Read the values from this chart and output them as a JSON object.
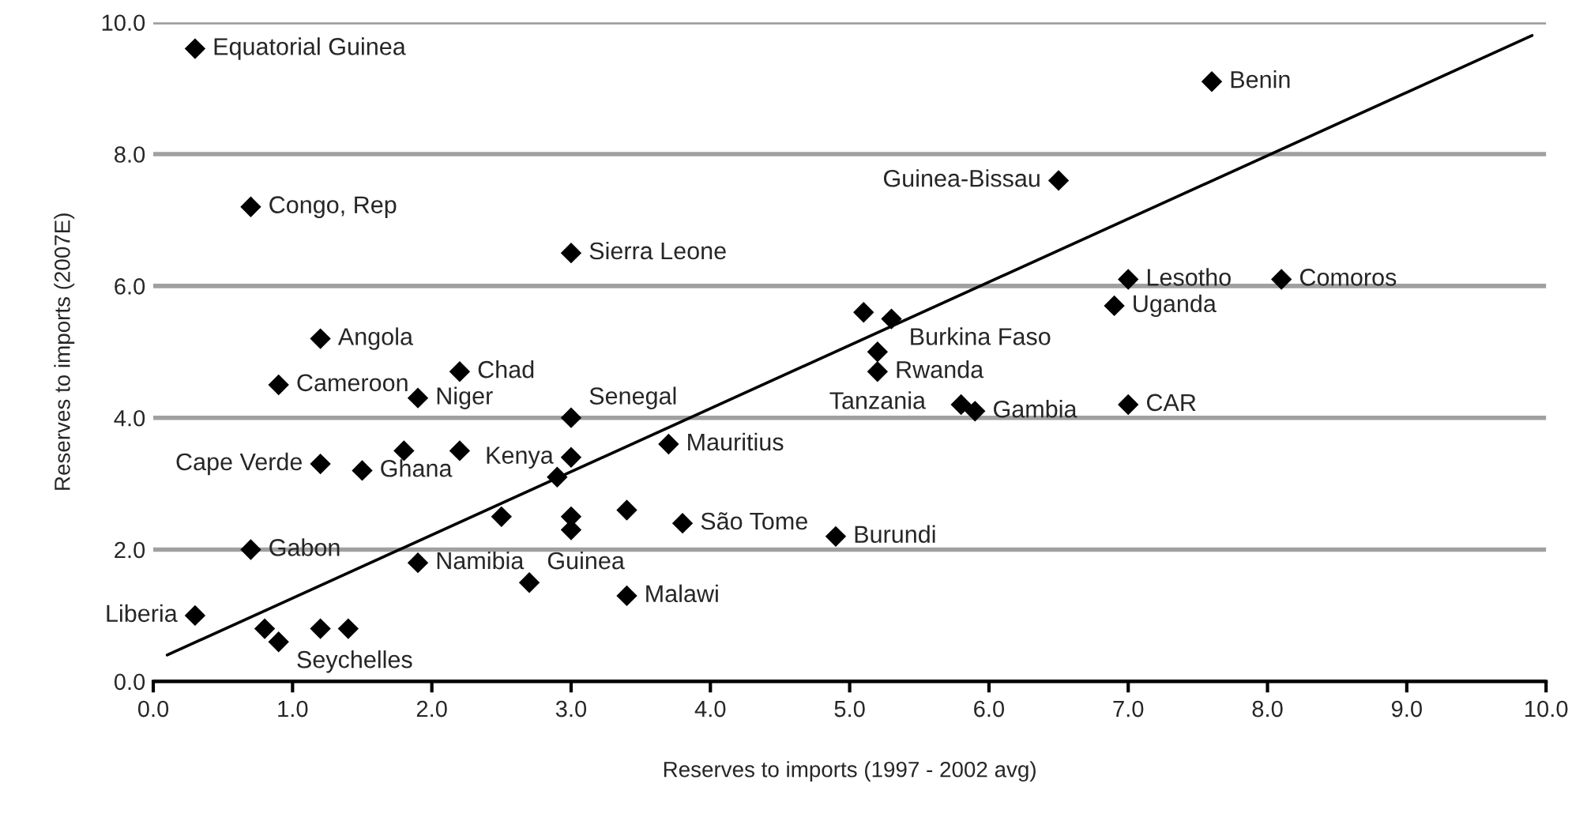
{
  "chart_data": {
    "type": "scatter",
    "xlabel": "Reserves to imports (1997 - 2002 avg)",
    "ylabel": "Reserves to imports (2007E)",
    "xlim": [
      0,
      10
    ],
    "ylim": [
      0,
      10
    ],
    "xticks": [
      {
        "value": 0,
        "label": "0.0"
      },
      {
        "value": 1,
        "label": "1.0"
      },
      {
        "value": 2,
        "label": "2.0"
      },
      {
        "value": 3,
        "label": "3.0"
      },
      {
        "value": 4,
        "label": "4.0"
      },
      {
        "value": 5,
        "label": "5.0"
      },
      {
        "value": 6,
        "label": "6.0"
      },
      {
        "value": 7,
        "label": "7.0"
      },
      {
        "value": 8,
        "label": "8.0"
      },
      {
        "value": 9,
        "label": "9.0"
      },
      {
        "value": 10,
        "label": "10.0"
      }
    ],
    "yticks": [
      {
        "value": 0,
        "label": "0.0"
      },
      {
        "value": 2,
        "label": "2.0"
      },
      {
        "value": 4,
        "label": "4.0"
      },
      {
        "value": 6,
        "label": "6.0"
      },
      {
        "value": 8,
        "label": "8.0"
      },
      {
        "value": 10,
        "label": "10.0"
      }
    ],
    "grid": "y",
    "marker": "diamond",
    "series": [
      {
        "color": "#000000",
        "x": [
          0.3,
          0.7,
          3.0,
          1.2,
          2.2,
          0.9,
          1.9,
          3.0,
          1.8,
          2.2,
          3.0,
          1.2,
          1.5,
          2.9,
          3.7,
          2.5,
          3.0,
          3.0,
          3.4,
          3.8,
          4.9,
          0.7,
          1.9,
          2.7,
          3.4,
          0.3,
          0.8,
          0.9,
          1.2,
          1.4,
          7.6,
          6.5,
          5.1,
          5.3,
          5.2,
          5.2,
          5.8,
          5.9,
          7.0,
          8.1,
          6.9,
          7.0
        ],
        "values": [
          9.6,
          7.2,
          6.5,
          5.2,
          4.7,
          4.5,
          4.3,
          4.0,
          3.5,
          3.5,
          3.4,
          3.3,
          3.2,
          3.1,
          3.6,
          2.5,
          2.5,
          2.3,
          2.6,
          2.4,
          2.2,
          2.0,
          1.8,
          1.5,
          1.3,
          1.0,
          0.8,
          0.6,
          0.8,
          0.8,
          9.1,
          7.6,
          5.6,
          5.5,
          5.0,
          4.7,
          4.2,
          4.1,
          6.1,
          6.1,
          5.7,
          4.2
        ]
      },
      {
        "type": "line",
        "color": "#000000",
        "marker": "none",
        "x": [
          0.1,
          9.9
        ],
        "values": [
          0.4,
          9.8
        ]
      }
    ],
    "annotations": [
      {
        "text": "Equatorial Guinea",
        "x": 0.3,
        "y": 9.6
      },
      {
        "text": "Congo, Rep",
        "x": 0.7,
        "y": 7.2
      },
      {
        "text": "Sierra Leone",
        "x": 3.0,
        "y": 6.5
      },
      {
        "text": "Angola",
        "x": 1.2,
        "y": 5.2
      },
      {
        "text": "Chad",
        "x": 2.2,
        "y": 4.7
      },
      {
        "text": "Cameroon",
        "x": 0.9,
        "y": 4.5
      },
      {
        "text": "Niger",
        "x": 1.9,
        "y": 4.3
      },
      {
        "text": "Senegal",
        "x": 3.0,
        "y": 4.0
      },
      {
        "text": "Kenya",
        "x": 3.0,
        "y": 3.4
      },
      {
        "text": "Cape Verde",
        "x": 1.2,
        "y": 3.3
      },
      {
        "text": "Ghana",
        "x": 1.5,
        "y": 3.2
      },
      {
        "text": "Mauritius",
        "x": 3.7,
        "y": 3.6
      },
      {
        "text": "São Tome",
        "x": 3.8,
        "y": 2.4
      },
      {
        "text": "Burundi",
        "x": 4.9,
        "y": 2.2
      },
      {
        "text": "Gabon",
        "x": 0.7,
        "y": 2.0
      },
      {
        "text": "Namibia",
        "x": 1.9,
        "y": 1.8
      },
      {
        "text": "Guinea",
        "x": 2.7,
        "y": 1.5
      },
      {
        "text": "Malawi",
        "x": 3.4,
        "y": 1.3
      },
      {
        "text": "Liberia",
        "x": 0.3,
        "y": 1.0
      },
      {
        "text": "Seychelles",
        "x": 0.9,
        "y": 0.6
      },
      {
        "text": "Benin",
        "x": 7.6,
        "y": 9.1
      },
      {
        "text": "Guinea-Bissau",
        "x": 6.5,
        "y": 7.6
      },
      {
        "text": "Burkina Faso",
        "x": 5.3,
        "y": 5.5
      },
      {
        "text": "Rwanda",
        "x": 5.2,
        "y": 5.0
      },
      {
        "text": "Tanzania",
        "x": 5.2,
        "y": 4.7
      },
      {
        "text": "Gambia",
        "x": 5.9,
        "y": 4.1
      },
      {
        "text": "Lesotho",
        "x": 7.0,
        "y": 6.1
      },
      {
        "text": "Comoros",
        "x": 8.1,
        "y": 6.1
      },
      {
        "text": "Uganda",
        "x": 6.9,
        "y": 5.7
      },
      {
        "text": "CAR",
        "x": 7.0,
        "y": 4.2
      }
    ]
  }
}
